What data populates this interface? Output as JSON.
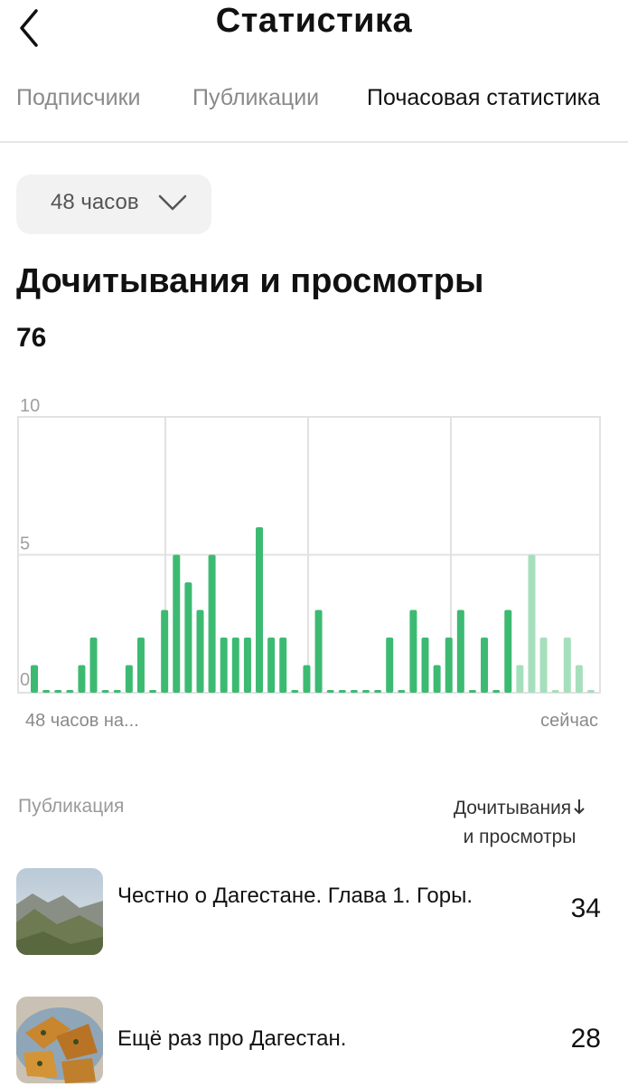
{
  "header": {
    "title": "Статистика",
    "back_icon": "chevron-left-icon"
  },
  "tabs": [
    {
      "label": "Подписчики",
      "active": false
    },
    {
      "label": "Публикации",
      "active": false
    },
    {
      "label": "Почасовая статистика",
      "active": true
    }
  ],
  "period": {
    "label": "48 часов",
    "icon": "chevron-down-icon"
  },
  "section": {
    "title": "Дочитывания и просмотры",
    "total": "76"
  },
  "chart_data": {
    "type": "bar",
    "y_ticks": [
      "10",
      "5",
      "0"
    ],
    "ylim": [
      0,
      10
    ],
    "x_start_label": "48 часов на...",
    "x_end_label": "сейчас",
    "grid": true,
    "colors": {
      "bar": "#3dba72",
      "bar_recent": "#a6dfbc",
      "grid": "#e2e2e2"
    },
    "values": [
      1,
      0,
      0,
      0,
      1,
      2,
      0,
      0,
      1,
      2,
      0,
      3,
      5,
      4,
      3,
      5,
      2,
      2,
      2,
      6,
      2,
      2,
      0,
      1,
      3,
      0,
      0,
      0,
      0,
      0,
      2,
      0,
      3,
      2,
      1,
      2,
      3,
      0,
      2,
      0,
      3,
      1,
      5,
      2,
      0,
      2,
      1,
      0
    ],
    "recent_from_index": 41
  },
  "table": {
    "col_publication": "Публикация",
    "col_metric_line1": "Дочитывания",
    "col_metric_line2": "и просмотры",
    "sort_icon": "arrow-down-icon",
    "rows": [
      {
        "title": "Честно о Дагестане. Глава 1. Горы.",
        "count": "34"
      },
      {
        "title": "Ещё раз про Дагестан.",
        "count": "28"
      }
    ]
  }
}
